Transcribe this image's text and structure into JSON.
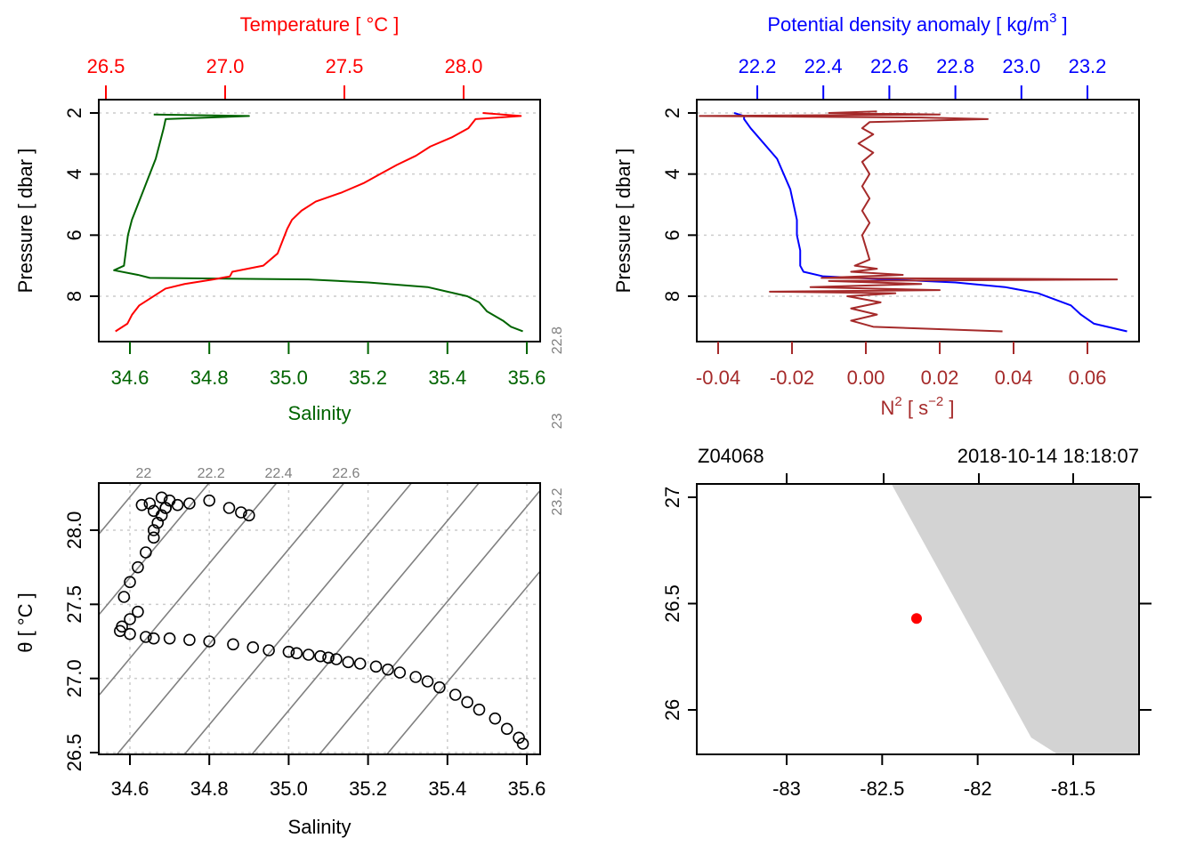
{
  "chart_data": [
    {
      "id": "ts_profile",
      "type": "line",
      "title": "",
      "top_axis": {
        "label": "Temperature [ °C ]",
        "ticks": [
          "26.5",
          "27.0",
          "27.5",
          "28.0"
        ],
        "tick_values": [
          26.5,
          27.0,
          27.5,
          28.0
        ],
        "color": "#FF0000"
      },
      "bottom_axis": {
        "label": "Salinity",
        "ticks": [
          "34.6",
          "34.8",
          "35.0",
          "35.2",
          "35.4",
          "35.6"
        ],
        "tick_values": [
          34.6,
          34.8,
          35.0,
          35.2,
          35.4,
          35.6
        ],
        "color": "#006400"
      },
      "left_axis": {
        "label": "Pressure [ dbar ]",
        "ticks": [
          "2",
          "4",
          "6",
          "8"
        ],
        "tick_values": [
          2,
          4,
          6,
          8
        ],
        "reversed": true
      },
      "xlim_temperature": [
        26.47,
        28.26
      ],
      "xlim_salinity": [
        34.53,
        35.61
      ],
      "ylim": [
        9.3,
        1.55
      ],
      "grid": "horizontal dotted",
      "series": [
        {
          "name": "Temperature",
          "color": "#FF0000",
          "pressure": [
            2.0,
            2.1,
            2.2,
            2.5,
            2.8,
            3.1,
            3.4,
            3.7,
            4.0,
            4.3,
            4.6,
            4.9,
            5.2,
            5.5,
            5.8,
            6.2,
            6.6,
            7.0,
            7.2,
            7.35,
            7.45,
            7.6,
            7.75,
            7.9,
            8.1,
            8.3,
            8.6,
            8.9,
            9.15
          ],
          "values": [
            28.08,
            28.24,
            28.05,
            28.02,
            27.95,
            27.86,
            27.8,
            27.72,
            27.65,
            27.58,
            27.49,
            27.38,
            27.32,
            27.28,
            27.26,
            27.24,
            27.22,
            27.16,
            27.03,
            27.02,
            26.95,
            26.83,
            26.75,
            26.72,
            26.68,
            26.64,
            26.61,
            26.59,
            26.54
          ]
        },
        {
          "name": "Salinity",
          "color": "#006400",
          "pressure": [
            2.05,
            2.1,
            2.2,
            2.5,
            3.0,
            3.5,
            4.0,
            4.5,
            5.0,
            5.5,
            6.0,
            6.5,
            7.0,
            7.15,
            7.3,
            7.4,
            7.45,
            7.55,
            7.7,
            7.85,
            8.0,
            8.2,
            8.5,
            8.8,
            9.0,
            9.15
          ],
          "values": [
            34.66,
            34.9,
            34.69,
            34.685,
            34.675,
            34.665,
            34.65,
            34.635,
            34.62,
            34.605,
            34.595,
            34.59,
            34.585,
            34.56,
            34.62,
            34.65,
            35.05,
            35.2,
            35.35,
            35.4,
            35.45,
            35.48,
            35.5,
            35.54,
            35.56,
            35.59
          ]
        }
      ]
    },
    {
      "id": "density_n2_profile",
      "type": "line",
      "top_axis": {
        "label": "Potential density anomaly [ kg/m^3 ]",
        "label_main": "Potential density anomaly [ kg/m",
        "label_sup": "3",
        "label_end": " ]",
        "ticks": [
          "22.2",
          "22.4",
          "22.6",
          "22.8",
          "23.0",
          "23.2"
        ],
        "tick_values": [
          22.2,
          22.4,
          22.6,
          22.8,
          23.0,
          23.2
        ],
        "color": "#0000FF"
      },
      "bottom_axis": {
        "label": "N^2 [ s^-2 ]",
        "label_n": "N",
        "label_sup1": "2",
        "label_mid": " [ s",
        "label_sup2": "−2",
        "label_end": " ]",
        "ticks": [
          "-0.04",
          "-0.02",
          "0.00",
          "0.02",
          "0.04",
          "0.06"
        ],
        "tick_values": [
          -0.04,
          -0.02,
          0.0,
          0.02,
          0.04,
          0.06
        ],
        "color": "#A52A2A"
      },
      "left_axis": {
        "label": "Pressure [ dbar ]",
        "ticks": [
          "2",
          "4",
          "6",
          "8"
        ],
        "tick_values": [
          2,
          4,
          6,
          8
        ],
        "reversed": true
      },
      "ylim": [
        9.3,
        1.55
      ],
      "grid": "horizontal dotted",
      "series": [
        {
          "name": "Potential density anomaly",
          "color": "#0000FF",
          "pressure": [
            2.0,
            2.1,
            2.2,
            2.5,
            3.0,
            3.5,
            4.0,
            4.5,
            5.0,
            5.5,
            6.0,
            6.5,
            7.0,
            7.2,
            7.35,
            7.45,
            7.55,
            7.7,
            7.8,
            7.9,
            8.1,
            8.3,
            8.6,
            8.9,
            9.15
          ],
          "values": [
            22.13,
            22.16,
            22.16,
            22.18,
            22.22,
            22.26,
            22.28,
            22.3,
            22.31,
            22.32,
            22.32,
            22.33,
            22.33,
            22.34,
            22.4,
            22.6,
            22.8,
            22.95,
            23.0,
            23.05,
            23.1,
            23.15,
            23.18,
            23.22,
            23.32
          ]
        },
        {
          "name": "N^2",
          "color": "#A52A2A",
          "pressure": [
            1.95,
            2.0,
            2.05,
            2.1,
            2.15,
            2.2,
            2.3,
            2.5,
            2.7,
            3.0,
            3.3,
            3.6,
            4.0,
            4.4,
            4.8,
            5.2,
            5.6,
            6.0,
            6.4,
            6.8,
            7.0,
            7.1,
            7.2,
            7.3,
            7.4,
            7.45,
            7.5,
            7.6,
            7.7,
            7.8,
            7.85,
            7.9,
            8.0,
            8.2,
            8.4,
            8.6,
            8.8,
            9.0,
            9.15
          ],
          "values": [
            0.003,
            -0.01,
            0.02,
            -0.045,
            0.015,
            0.033,
            0.001,
            -0.001,
            0.002,
            -0.002,
            0.002,
            -0.001,
            0.001,
            -0.001,
            0.001,
            -0.001,
            0.001,
            -0.001,
            0.0,
            0.001,
            -0.003,
            0.003,
            -0.004,
            0.01,
            -0.012,
            0.068,
            -0.01,
            0.015,
            -0.015,
            0.02,
            -0.026,
            0.008,
            -0.005,
            0.004,
            -0.004,
            0.003,
            -0.004,
            0.002,
            0.037
          ]
        }
      ]
    },
    {
      "id": "ts_diagram",
      "type": "scatter",
      "bottom_axis": {
        "label": "Salinity",
        "ticks": [
          "34.6",
          "34.8",
          "35.0",
          "35.2",
          "35.4",
          "35.6"
        ],
        "tick_values": [
          34.6,
          34.8,
          35.0,
          35.2,
          35.4,
          35.6
        ]
      },
      "left_axis": {
        "label": "θ [ °C ]",
        "ticks": [
          "26.5",
          "27.0",
          "27.5",
          "28.0"
        ],
        "tick_values": [
          26.5,
          27.0,
          27.5,
          28.0
        ]
      },
      "xlim": [
        34.53,
        35.61
      ],
      "ylim": [
        26.49,
        28.32
      ],
      "grid": "dotted",
      "isopycnal_labels_top": [
        "22",
        "22.2",
        "22.4",
        "22.6"
      ],
      "isopycnal_labels_right": [
        "22.8",
        "23",
        "23.2"
      ],
      "isopycnal_values": [
        21.8,
        22.0,
        22.2,
        22.4,
        22.6,
        22.8,
        23.0,
        23.2,
        23.4
      ],
      "points": {
        "salinity": [
          34.585,
          34.6,
          34.62,
          34.64,
          34.66,
          34.66,
          34.67,
          34.68,
          34.69,
          34.7,
          34.68,
          34.65,
          34.63,
          34.66,
          34.69,
          34.72,
          34.75,
          34.8,
          34.85,
          34.88,
          34.9,
          34.62,
          34.6,
          34.58,
          34.575,
          34.6,
          34.64,
          34.66,
          34.7,
          34.75,
          34.8,
          34.86,
          34.91,
          34.95,
          35.0,
          35.02,
          35.05,
          35.08,
          35.1,
          35.12,
          35.15,
          35.18,
          35.22,
          35.25,
          35.28,
          35.32,
          35.35,
          35.38,
          35.42,
          35.45,
          35.48,
          35.52,
          35.55,
          35.58,
          35.59
        ],
        "theta": [
          27.55,
          27.65,
          27.75,
          27.85,
          27.95,
          28.0,
          28.05,
          28.1,
          28.15,
          28.2,
          28.22,
          28.18,
          28.17,
          28.13,
          28.15,
          28.17,
          28.18,
          28.2,
          28.15,
          28.12,
          28.1,
          27.45,
          27.4,
          27.35,
          27.32,
          27.3,
          27.28,
          27.27,
          27.27,
          27.26,
          27.25,
          27.23,
          27.21,
          27.19,
          27.18,
          27.17,
          27.16,
          27.15,
          27.14,
          27.13,
          27.11,
          27.1,
          27.08,
          27.06,
          27.04,
          27.01,
          26.98,
          26.94,
          26.89,
          26.84,
          26.79,
          26.73,
          26.66,
          26.6,
          26.56
        ]
      }
    },
    {
      "id": "station_map",
      "type": "scatter",
      "station_label": "Z04068",
      "datetime_label": "2018-10-14 18:18:07",
      "bottom_axis": {
        "ticks": [
          "-83",
          "-82.5",
          "-82",
          "-81.5"
        ],
        "tick_values": [
          -83,
          -82.5,
          -82,
          -81.5
        ]
      },
      "left_axis": {
        "ticks": [
          "26",
          "26.5",
          "27"
        ],
        "tick_values": [
          26,
          26.5,
          27
        ]
      },
      "xlim": [
        -83.47,
        -81.16
      ],
      "ylim": [
        25.79,
        27.06
      ],
      "land_color": "#D3D3D3",
      "coastline": {
        "lon": [
          -82.45,
          -81.16,
          -81.16,
          -81.58,
          -81.72,
          -82.45
        ],
        "lat": [
          27.06,
          27.06,
          25.79,
          25.79,
          25.87,
          27.06
        ]
      },
      "station": {
        "lon": -82.32,
        "lat": 26.43,
        "color": "#FF0000"
      }
    }
  ]
}
